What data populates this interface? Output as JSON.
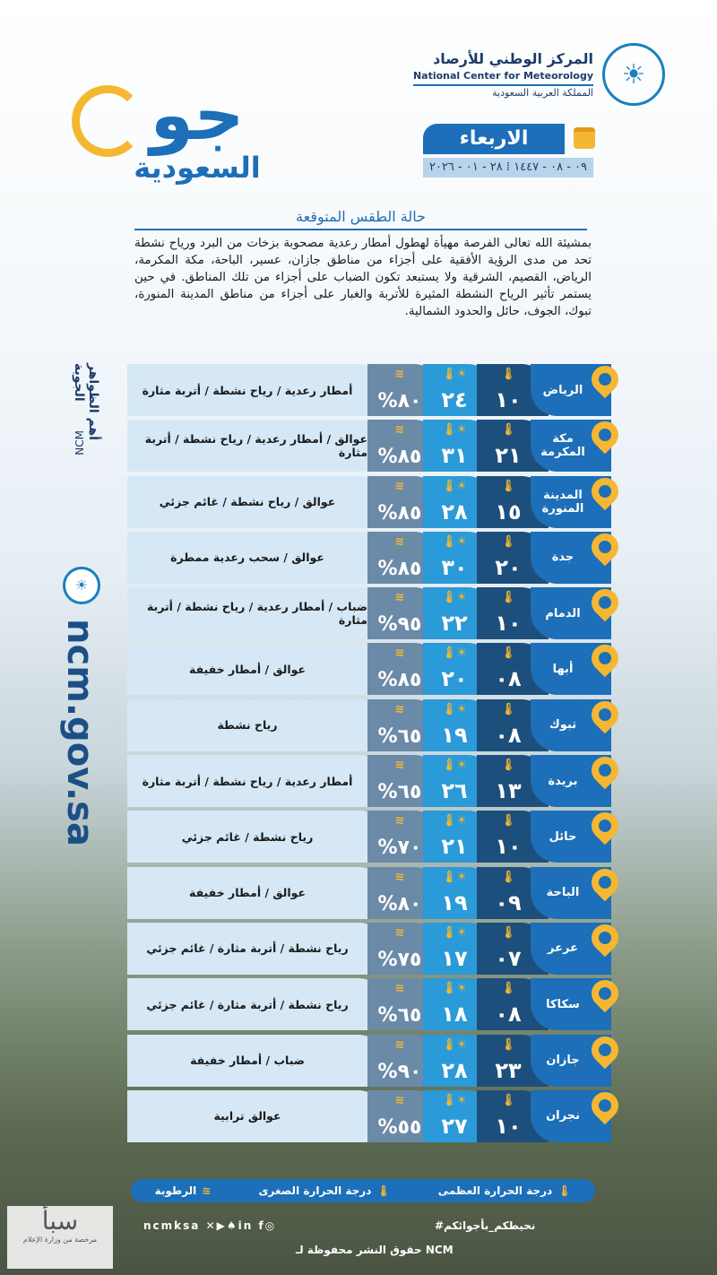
{
  "header": {
    "org_ar": "المركز الوطني للأرصاد",
    "org_en": "National Center for Meteorology",
    "country": "المملكة العربية السعودية",
    "brand_main": "جو",
    "brand_sub": "السعودية",
    "day": "الاربعاء",
    "date": "٠٩ - ٠٨ - ١٤٤٧  ⁞  ٢٨ - ٠١ - ٢٠٢٦"
  },
  "section_title": "حالة الطقس المتوقعة",
  "description": "بمشيئة الله تعالى الفرصة مهيأة لهطول أمطار رعدية مصحوبة بزخات من البرد ورياح نشطة تحد من مدى الرؤية الأفقية على أجزاء من مناطق جازان، عسير، الباحة، مكة المكرمة، الرياض، القصيم، الشرقية ولا يستبعد تكون الضباب على أجزاء من تلك المناطق. في حين يستمر تأثير الرياح النشطة المثيرة للأتربة والغبار على أجزاء من مناطق المدينة المنورة، تبوك، الجوف، حائل والحدود الشمالية.",
  "side": {
    "title": "أهم الظواهر الجوية",
    "ncm": "NCM",
    "url": "ncm.gov.sa"
  },
  "cities": [
    {
      "name": "الرياض",
      "min": "١٠",
      "max": "٢٤",
      "hum": "٨٠%",
      "phen": "أمطار رعدية / رياح نشطة / أتربة مثارة"
    },
    {
      "name": "مكة المكرمة",
      "min": "٢١",
      "max": "٣١",
      "hum": "٨٥%",
      "phen": "عوالق / أمطار رعدية / رياح نشطة / أتربة مثارة"
    },
    {
      "name": "المدينة المنورة",
      "min": "١٥",
      "max": "٢٨",
      "hum": "٨٥%",
      "phen": "عوالق / رياح نشطة / غائم جزئي"
    },
    {
      "name": "جدة",
      "min": "٢٠",
      "max": "٣٠",
      "hum": "٨٥%",
      "phen": "عوالق / سحب رعدية ممطرة"
    },
    {
      "name": "الدمام",
      "min": "١٠",
      "max": "٢٢",
      "hum": "٩٥%",
      "phen": "ضباب / أمطار رعدية / رياح نشطة / أتربة مثارة"
    },
    {
      "name": "أبها",
      "min": "٠٨",
      "max": "٢٠",
      "hum": "٨٥%",
      "phen": "عوالق / أمطار خفيفة"
    },
    {
      "name": "تبوك",
      "min": "٠٨",
      "max": "١٩",
      "hum": "٦٥%",
      "phen": "رياح نشطة"
    },
    {
      "name": "بريدة",
      "min": "١٣",
      "max": "٢٦",
      "hum": "٦٥%",
      "phen": "أمطار رعدية / رياح نشطة / أتربة مثارة"
    },
    {
      "name": "حائل",
      "min": "١٠",
      "max": "٢١",
      "hum": "٧٠%",
      "phen": "رياح نشطة / غائم جزئي"
    },
    {
      "name": "الباحة",
      "min": "٠٩",
      "max": "١٩",
      "hum": "٨٠%",
      "phen": "عوالق / أمطار خفيفة"
    },
    {
      "name": "عرعر",
      "min": "٠٧",
      "max": "١٧",
      "hum": "٧٥%",
      "phen": "رياح نشطة / أتربة مثارة / غائم جزئي"
    },
    {
      "name": "سكاكا",
      "min": "٠٨",
      "max": "١٨",
      "hum": "٦٥%",
      "phen": "رياح نشطة / أتربة مثارة / غائم جزئي"
    },
    {
      "name": "جازان",
      "min": "٢٣",
      "max": "٢٨",
      "hum": "٩٠%",
      "phen": "ضباب / أمطار خفيفة"
    },
    {
      "name": "نجران",
      "min": "١٠",
      "max": "٢٧",
      "hum": "٥٥%",
      "phen": "عوالق ترابية"
    }
  ],
  "legend": {
    "max": "درجة الحرارة العظمى",
    "min": "درجة الحرارة الصغرى",
    "hum": "الرطوبة"
  },
  "footer": {
    "social": "ncmksa",
    "hashtag": "#نحيطكم_بأجوائكم",
    "copyright": "حقوق النشر محفوظة لـ NCM"
  },
  "watermark": {
    "name": "سبأ",
    "note": "مرخصة من وزارة الإعلام"
  },
  "colors": {
    "primary": "#1c6fb8",
    "accent": "#f5b731",
    "min": "#1d4f7c",
    "max": "#2a9ad8",
    "hum": "#6b8aa8"
  }
}
